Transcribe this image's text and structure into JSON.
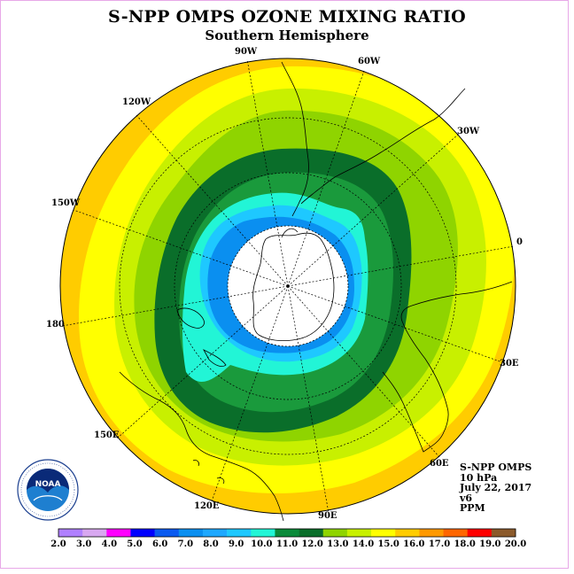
{
  "title": "S-NPP OMPS OZONE MIXING RATIO",
  "subtitle": "Southern Hemisphere",
  "map": {
    "projection": "south-polar-stereographic",
    "grid": true,
    "longitude_labels": [
      "90W",
      "60W",
      "30W",
      "0",
      "30E",
      "60E",
      "90E",
      "120E",
      "150E",
      "180",
      "150W",
      "120W"
    ],
    "field_bands_center_to_edge": [
      {
        "range": "no data (polar night)",
        "color": "#ffffff"
      },
      {
        "range": "7.0-8.0",
        "color": "#0a8ff0"
      },
      {
        "range": "8.0-9.0",
        "color": "#1ec8ff"
      },
      {
        "range": "9.0-10.0",
        "color": "#22f5d6"
      },
      {
        "range": "10.0-11.0",
        "color": "#1a9a3c"
      },
      {
        "range": "11.0-12.0",
        "color": "#0a6e2a"
      },
      {
        "range": "12.0-13.0",
        "color": "#8fd400"
      },
      {
        "range": "13.0-14.0",
        "color": "#c8f000"
      },
      {
        "range": "14.0-15.0",
        "color": "#ffff00"
      },
      {
        "range": "15.0-16.0",
        "color": "#ffcc00"
      }
    ]
  },
  "info": {
    "instrument": "S-NPP OMPS",
    "pressure": "10 hPa",
    "date": "July 22, 2017",
    "version": "v6",
    "units": "PPM"
  },
  "colorbar": {
    "labels": [
      "2.0",
      "3.0",
      "4.0",
      "5.0",
      "6.0",
      "7.0",
      "8.0",
      "9.0",
      "10.0",
      "11.0",
      "12.0",
      "13.0",
      "14.0",
      "15.0",
      "16.0",
      "17.0",
      "18.0",
      "19.0",
      "20.0"
    ],
    "colors": [
      "#b080ff",
      "#d8a8f0",
      "#ff00ff",
      "#0000ff",
      "#0a5af0",
      "#0a8ff0",
      "#1ea8ff",
      "#1ec8ff",
      "#22f5d6",
      "#0a8a3a",
      "#0a6e2a",
      "#8fd400",
      "#c8f000",
      "#ffff00",
      "#ffcc00",
      "#ff9900",
      "#ff6600",
      "#ff0000",
      "#8b5a2b"
    ]
  },
  "logo": {
    "text": "NOAA",
    "ring_text": "NATIONAL OCEANIC AND ATMOSPHERIC ADMINISTRATION · U.S. DEPARTMENT OF COMMERCE"
  }
}
